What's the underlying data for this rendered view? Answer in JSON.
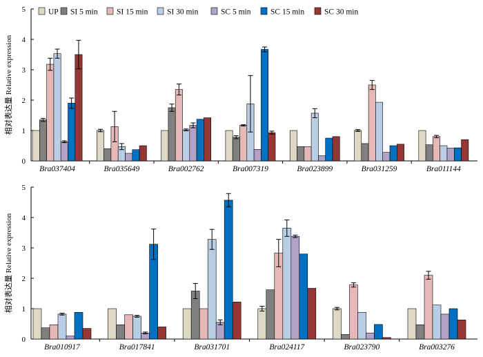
{
  "chart_data": [
    {
      "type": "bar",
      "ylabel": "相对表达量 Relative expression",
      "ylim": [
        0,
        5
      ],
      "yticks": [
        "0",
        "1",
        "2",
        "3",
        "4",
        "5"
      ],
      "legend": {
        "placement": "top"
      },
      "categories": [
        "Bra037404",
        "Bra035649",
        "Bra002762",
        "Bra007319",
        "Bra023899",
        "Bra031259",
        "Bra011144"
      ],
      "series": [
        {
          "name": "UP",
          "color": "#ddd9c4",
          "values": [
            1.0,
            1.0,
            1.0,
            1.0,
            1.0,
            1.0,
            1.0
          ],
          "errors": [
            0,
            0.04,
            0,
            0,
            0,
            0.03,
            0
          ]
        },
        {
          "name": "SI 5 min",
          "color": "#808080",
          "values": [
            1.35,
            0.4,
            1.75,
            0.78,
            0.47,
            0.57,
            0.53
          ],
          "errors": [
            0.05,
            0,
            0.12,
            0.05,
            0,
            0,
            0
          ]
        },
        {
          "name": "SI 15 min",
          "color": "#e6b9b8",
          "values": [
            3.18,
            1.13,
            2.35,
            1.17,
            0.47,
            2.5,
            0.8
          ],
          "errors": [
            0.2,
            0.5,
            0.18,
            0.02,
            0,
            0.15,
            0.04
          ]
        },
        {
          "name": "SI 30 min",
          "color": "#b9cde5",
          "values": [
            3.53,
            0.47,
            1.02,
            1.88,
            1.57,
            1.93,
            0.5
          ],
          "errors": [
            0.15,
            0.1,
            0.03,
            0.93,
            0.15,
            0,
            0
          ]
        },
        {
          "name": "SC 5 min",
          "color": "#b3a2c7",
          "values": [
            0.63,
            0.25,
            1.17,
            0.38,
            0.17,
            0.28,
            0.42
          ],
          "errors": [
            0.03,
            0,
            0.08,
            0,
            0,
            0,
            0
          ]
        },
        {
          "name": "SC 15 min",
          "color": "#0070c0",
          "values": [
            1.9,
            0.37,
            1.37,
            3.67,
            0.75,
            0.5,
            0.43
          ],
          "errors": [
            0.17,
            0,
            0,
            0.08,
            0,
            0,
            0
          ]
        },
        {
          "name": "SC 30 min",
          "color": "#953735",
          "values": [
            3.5,
            0.5,
            1.42,
            0.93,
            0.8,
            0.55,
            0.7
          ],
          "errors": [
            0.47,
            0,
            0,
            0.05,
            0,
            0,
            0
          ]
        }
      ]
    },
    {
      "type": "bar",
      "ylabel": "相对表达量 Relative expression",
      "ylim": [
        0,
        5
      ],
      "yticks": [
        "0",
        "1",
        "2",
        "3",
        "4",
        "5"
      ],
      "categories": [
        "Bra010917",
        "Bra017841",
        "Bra031701",
        "Bra024117",
        "Bra023790",
        "Bra003276"
      ],
      "series": [
        {
          "name": "UP",
          "color": "#ddd9c4",
          "values": [
            1.0,
            1.0,
            1.0,
            1.0,
            1.0,
            1.0
          ],
          "errors": [
            0,
            0,
            0,
            0.08,
            0.04,
            0
          ]
        },
        {
          "name": "SI 5 min",
          "color": "#808080",
          "values": [
            0.37,
            0.47,
            1.58,
            1.62,
            0.15,
            0.47
          ],
          "errors": [
            0,
            0,
            0.25,
            0,
            0,
            0
          ]
        },
        {
          "name": "SI 15 min",
          "color": "#e6b9b8",
          "values": [
            0.47,
            0.8,
            1.0,
            2.83,
            1.78,
            2.1
          ],
          "errors": [
            0,
            0,
            0,
            0.45,
            0.07,
            0.13
          ]
        },
        {
          "name": "SI 30 min",
          "color": "#b9cde5",
          "values": [
            0.82,
            0.75,
            3.28,
            3.65,
            0.88,
            1.12
          ],
          "errors": [
            0.03,
            0.03,
            0.33,
            0.27,
            0,
            0
          ]
        },
        {
          "name": "SC 5 min",
          "color": "#b3a2c7",
          "values": [
            0.1,
            0.2,
            0.55,
            3.38,
            0.2,
            0.82
          ],
          "errors": [
            0,
            0.03,
            0.08,
            0.04,
            0,
            0
          ]
        },
        {
          "name": "SC 15 min",
          "color": "#0070c0",
          "values": [
            0.88,
            3.12,
            4.57,
            2.8,
            0.48,
            1.0
          ],
          "errors": [
            0,
            0.5,
            0.22,
            0,
            0,
            0
          ]
        },
        {
          "name": "SC 30 min",
          "color": "#953735",
          "values": [
            0.35,
            0.4,
            1.22,
            1.67,
            0.05,
            0.63
          ],
          "errors": [
            0,
            0,
            0,
            0,
            0,
            0
          ]
        }
      ]
    }
  ]
}
